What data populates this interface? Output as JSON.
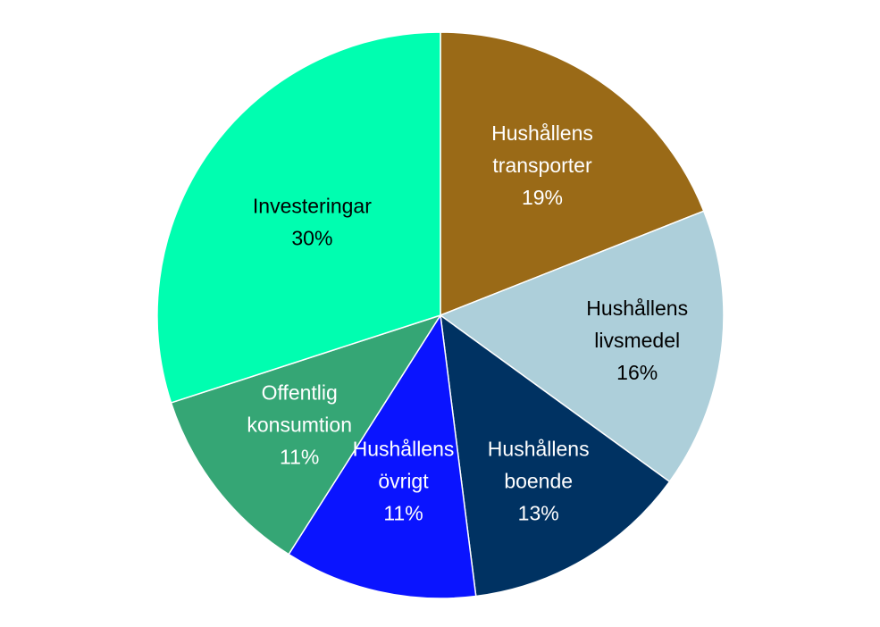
{
  "chart_data": {
    "type": "pie",
    "title": "",
    "start_angle_deg": 0,
    "direction": "clockwise",
    "slices": [
      {
        "label_lines": [
          "Hushållens",
          "transporter"
        ],
        "value": 19,
        "value_label": "19%",
        "color": "#9A6A17",
        "text_color": "#FFFFFF"
      },
      {
        "label_lines": [
          "Hushållens",
          "livsmedel"
        ],
        "value": 16,
        "value_label": "16%",
        "color": "#ADCFDA",
        "text_color": "#000000"
      },
      {
        "label_lines": [
          "Hushållens",
          "boende"
        ],
        "value": 13,
        "value_label": "13%",
        "color": "#003262",
        "text_color": "#FFFFFF"
      },
      {
        "label_lines": [
          "Hushållens",
          "övrigt"
        ],
        "value": 11,
        "value_label": "11%",
        "color": "#0A14FF",
        "text_color": "#FFFFFF"
      },
      {
        "label_lines": [
          "Offentlig",
          "konsumtion"
        ],
        "value": 11,
        "value_label": "11%",
        "color": "#35A675",
        "text_color": "#FFFFFF"
      },
      {
        "label_lines": [
          "Investeringar"
        ],
        "value": 30,
        "value_label": "30%",
        "color": "#00FEB0",
        "text_color": "#000000"
      }
    ]
  }
}
